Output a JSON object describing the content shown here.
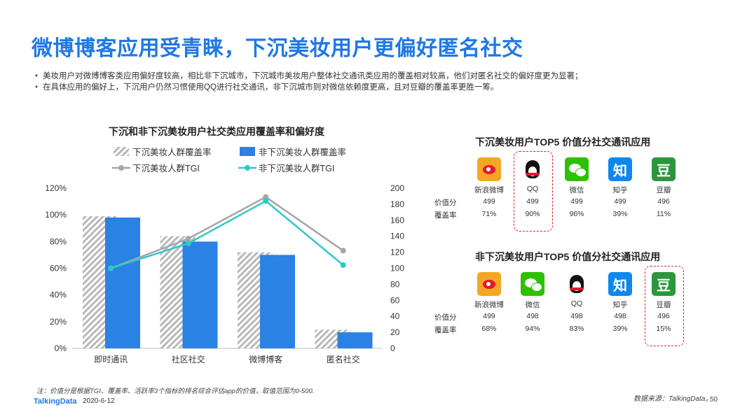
{
  "page": {
    "title": "微博博客应用受青睐，下沉美妆用户更偏好匿名社交",
    "bullets": [
      "美妆用户对微博博客类应用偏好度较高，相比非下沉城市，下沉城市美妆用户整体社交通讯类应用的覆盖相对较高，他们对匿名社交的偏好度更为显著；",
      "在具体应用的偏好上，下沉用户仍然习惯使用QQ进行社交通讯，非下沉城市则对微信依赖度更高，且对豆瓣的覆盖率更胜一筹。"
    ],
    "note": "注：价值分是根据TGI、覆盖率、活跃率3个指标的排名综合评估app的价值，取值范围为0-500.",
    "logo": "TalkingData",
    "date": "2020-6-12",
    "source": "数据来源：TalkingData。",
    "page_number": "50"
  },
  "chart_data": {
    "type": "bar",
    "title": "下沉和非下沉美妆用户社交类应用覆盖率和偏好度",
    "categories": [
      "即时通讯",
      "社区社交",
      "微博博客",
      "匿名社交"
    ],
    "y_left": {
      "ticks": [
        "0%",
        "20%",
        "40%",
        "60%",
        "80%",
        "100%",
        "120%"
      ],
      "range": [
        0,
        120
      ]
    },
    "y_right": {
      "ticks": [
        "0",
        "20",
        "40",
        "60",
        "80",
        "100",
        "120",
        "140",
        "160",
        "180",
        "200"
      ],
      "range": [
        0,
        200
      ]
    },
    "legend_placement": "top",
    "series": [
      {
        "name": "下沉美妆人群覆盖率",
        "kind": "bar",
        "axis": "left",
        "values": [
          99,
          84,
          72,
          14
        ],
        "color": "#b8b8b8",
        "pattern": "hatch"
      },
      {
        "name": "非下沉美妆人群覆盖率",
        "kind": "bar",
        "axis": "left",
        "values": [
          98,
          80,
          70,
          12
        ],
        "color": "#2a82e4"
      },
      {
        "name": "下沉美妆人群TGI",
        "kind": "line",
        "axis": "right",
        "values": [
          100,
          137,
          189,
          122
        ],
        "color": "#a6a6a6"
      },
      {
        "name": "非下沉美妆人群TGI",
        "kind": "line",
        "axis": "right",
        "values": [
          100,
          131,
          184,
          104
        ],
        "color": "#2fc8c8"
      }
    ]
  },
  "panels": [
    {
      "title": "下沉美妆用户TOP5 价值分社交通讯应用",
      "row_labels": {
        "value": "价值分",
        "coverage": "覆盖率"
      },
      "apps": [
        {
          "name": "新浪微博",
          "icon": "weibo-icon",
          "value": "499",
          "coverage": "71%"
        },
        {
          "name": "QQ",
          "icon": "qq-icon",
          "value": "499",
          "coverage": "90%",
          "highlight": true
        },
        {
          "name": "微信",
          "icon": "wechat-icon",
          "value": "499",
          "coverage": "96%"
        },
        {
          "name": "知乎",
          "icon": "zhihu-icon",
          "glyph": "知",
          "value": "499",
          "coverage": "39%"
        },
        {
          "name": "豆瓣",
          "icon": "douban-icon",
          "glyph": "豆",
          "value": "496",
          "coverage": "11%"
        }
      ]
    },
    {
      "title": "非下沉美妆用户TOP5 价值分社交通讯应用",
      "row_labels": {
        "value": "价值分",
        "coverage": "覆盖率"
      },
      "apps": [
        {
          "name": "新浪微博",
          "icon": "weibo-icon",
          "value": "499",
          "coverage": "68%"
        },
        {
          "name": "微信",
          "icon": "wechat-icon",
          "value": "498",
          "coverage": "94%"
        },
        {
          "name": "QQ",
          "icon": "qq-icon",
          "value": "498",
          "coverage": "83%"
        },
        {
          "name": "知乎",
          "icon": "zhihu-icon",
          "glyph": "知",
          "value": "498",
          "coverage": "39%"
        },
        {
          "name": "豆瓣",
          "icon": "douban-icon",
          "glyph": "豆",
          "value": "496",
          "coverage": "15%",
          "highlight": true
        }
      ]
    }
  ],
  "colors": {
    "accent": "#1e78e6",
    "highlight_border": "#e02020"
  }
}
